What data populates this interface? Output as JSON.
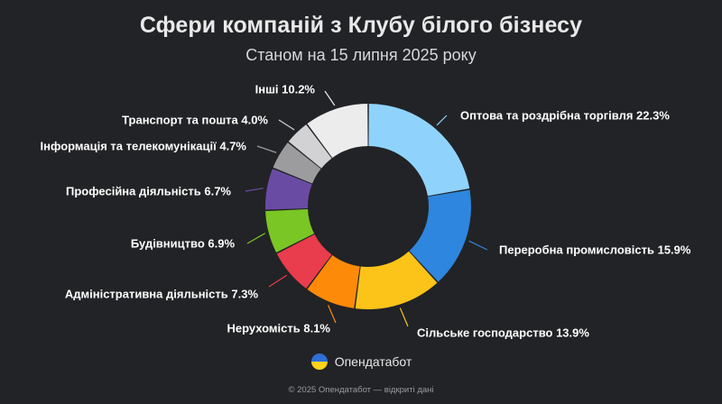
{
  "title": "Сфери компаній з Клубу білого бізнесу",
  "subtitle": "Станом на 15 липня 2025 року",
  "brand": {
    "name": "Опендатабот",
    "logo_icon": "opendatabot-logo-icon",
    "logo_colors": [
      "#2f6fd6",
      "#ffd31a"
    ]
  },
  "footer": "© 2025 Опендатабот — відкриті дані",
  "chart_data": {
    "type": "pie",
    "donut": true,
    "title": "Сфери компаній з Клубу білого бізнесу",
    "subtitle": "Станом на 15 липня 2025 року",
    "unit": "%",
    "slices": [
      {
        "label": "Оптова та роздрібна торгівля",
        "value": 22.3,
        "display": "Оптова та роздрібна торгівля 22.3%",
        "color": "#8fd3fc"
      },
      {
        "label": "Переробна промисловість",
        "value": 15.9,
        "display": "Переробна промисловість 15.9%",
        "color": "#2e86de"
      },
      {
        "label": "Сільське господарство",
        "value": 13.9,
        "display": "Сільське господарство 13.9%",
        "color": "#fcc419"
      },
      {
        "label": "Нерухомість",
        "value": 8.1,
        "display": "Нерухомість 8.1%",
        "color": "#fd8a08"
      },
      {
        "label": "Адміністративна діяльність",
        "value": 7.3,
        "display": "Адміністративна діяльність 7.3%",
        "color": "#e93c4c"
      },
      {
        "label": "Будівництво",
        "value": 6.9,
        "display": "Будівництво 6.9%",
        "color": "#7ac625"
      },
      {
        "label": "Професійна діяльність",
        "value": 6.7,
        "display": "Професійна діяльність 6.7%",
        "color": "#6a4ba4"
      },
      {
        "label": "Інформація та телекомунікації",
        "value": 4.7,
        "display": "Інформація та телекомунікації 4.7%",
        "color": "#9c9c9e"
      },
      {
        "label": "Транспорт та пошта",
        "value": 4.0,
        "display": "Транспорт та пошта 4.0%",
        "color": "#d2d2d4"
      },
      {
        "label": "Інші",
        "value": 10.2,
        "display": "Інші 10.2%",
        "color": "#ececed"
      }
    ]
  }
}
